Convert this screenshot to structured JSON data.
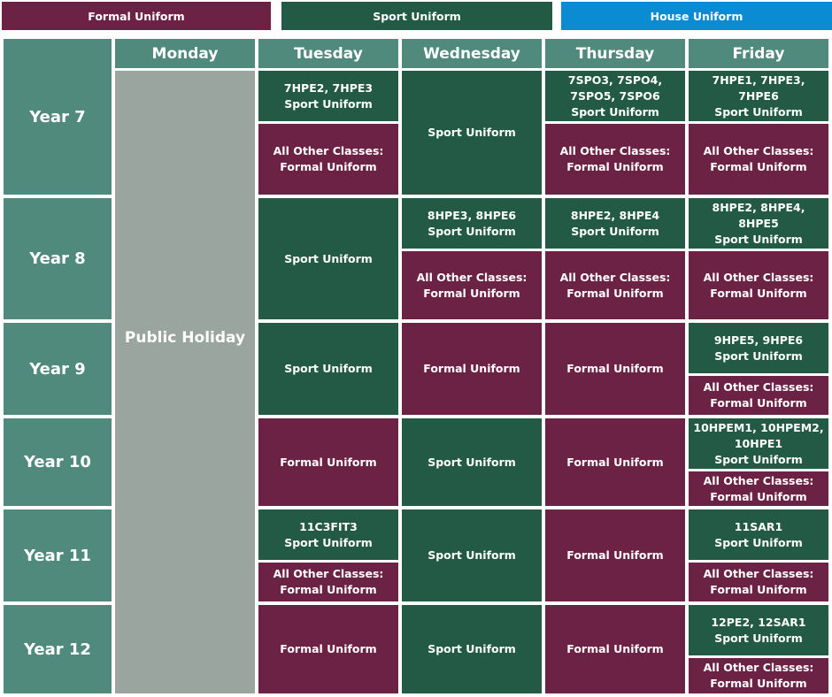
{
  "legend": [
    "Formal Uniform",
    "Sport Uniform",
    "House Uniform"
  ],
  "days": [
    "Monday",
    "Tuesday",
    "Wednesday",
    "Thursday",
    "Friday"
  ],
  "monday": "Public Holiday",
  "rows": [
    {
      "year": "Year 7",
      "cells": [
        [
          [
            "7HPE2, 7HPE3",
            "Sport Uniform"
          ],
          [
            "All Other Classes:",
            "Formal  Uniform"
          ]
        ],
        [
          [
            "Sport Uniform"
          ]
        ],
        [
          [
            "7SPO3, 7SPO4, 7SPO5, 7SPO6",
            "Sport Uniform"
          ],
          [
            "All Other Classes:",
            "Formal  Uniform"
          ]
        ],
        [
          [
            "7HPE1, 7HPE3, 7HPE6",
            "Sport Uniform"
          ],
          [
            "All Other Classes:",
            "Formal  Uniform"
          ]
        ]
      ]
    },
    {
      "year": "Year 8",
      "cells": [
        [
          [
            "Sport Uniform"
          ]
        ],
        [
          [
            "8HPE3, 8HPE6",
            "Sport Uniform"
          ],
          [
            "All Other Classes:",
            "Formal  Uniform"
          ]
        ],
        [
          [
            "8HPE2, 8HPE4",
            "Sport Uniform"
          ],
          [
            "All Other Classes:",
            "Formal  Uniform"
          ]
        ],
        [
          [
            "8HPE2, 8HPE4, 8HPE5",
            "Sport Uniform"
          ],
          [
            "All Other Classes:",
            "Formal  Uniform"
          ]
        ]
      ]
    },
    {
      "year": "Year 9",
      "cells": [
        [
          [
            "Sport Uniform"
          ]
        ],
        [
          [
            "Formal Uniform"
          ]
        ],
        [
          [
            "Formal Uniform"
          ]
        ],
        [
          [
            "9HPE5, 9HPE6",
            "Sport Uniform"
          ],
          [
            "All Other Classes:",
            "Formal  Uniform"
          ]
        ]
      ]
    },
    {
      "year": "Year 10",
      "cells": [
        [
          [
            "Formal Uniform"
          ]
        ],
        [
          [
            "Sport Uniform"
          ]
        ],
        [
          [
            "Formal Uniform"
          ]
        ],
        [
          [
            "10HPEM1, 10HPEM2, 10HPE1",
            "Sport Uniform"
          ],
          [
            "All Other Classes:",
            "Formal  Uniform"
          ]
        ]
      ]
    },
    {
      "year": "Year 11",
      "cells": [
        [
          [
            "11C3FIT3",
            "Sport Uniform"
          ],
          [
            "All Other Classes:",
            "Formal  Uniform"
          ]
        ],
        [
          [
            "Sport Uniform"
          ]
        ],
        [
          [
            "Formal Uniform"
          ]
        ],
        [
          [
            "11SAR1",
            "Sport Uniform"
          ],
          [
            "All Other Classes:",
            "Formal  Uniform"
          ]
        ]
      ]
    },
    {
      "year": "Year 12",
      "cells": [
        [
          [
            "Formal Uniform"
          ]
        ],
        [
          [
            "Sport Uniform"
          ]
        ],
        [
          [
            "Formal Uniform"
          ]
        ],
        [
          [
            "12PE2, 12SAR1",
            "Sport Uniform"
          ],
          [
            "All Other Classes:",
            "Formal  Uniform"
          ]
        ]
      ]
    }
  ]
}
